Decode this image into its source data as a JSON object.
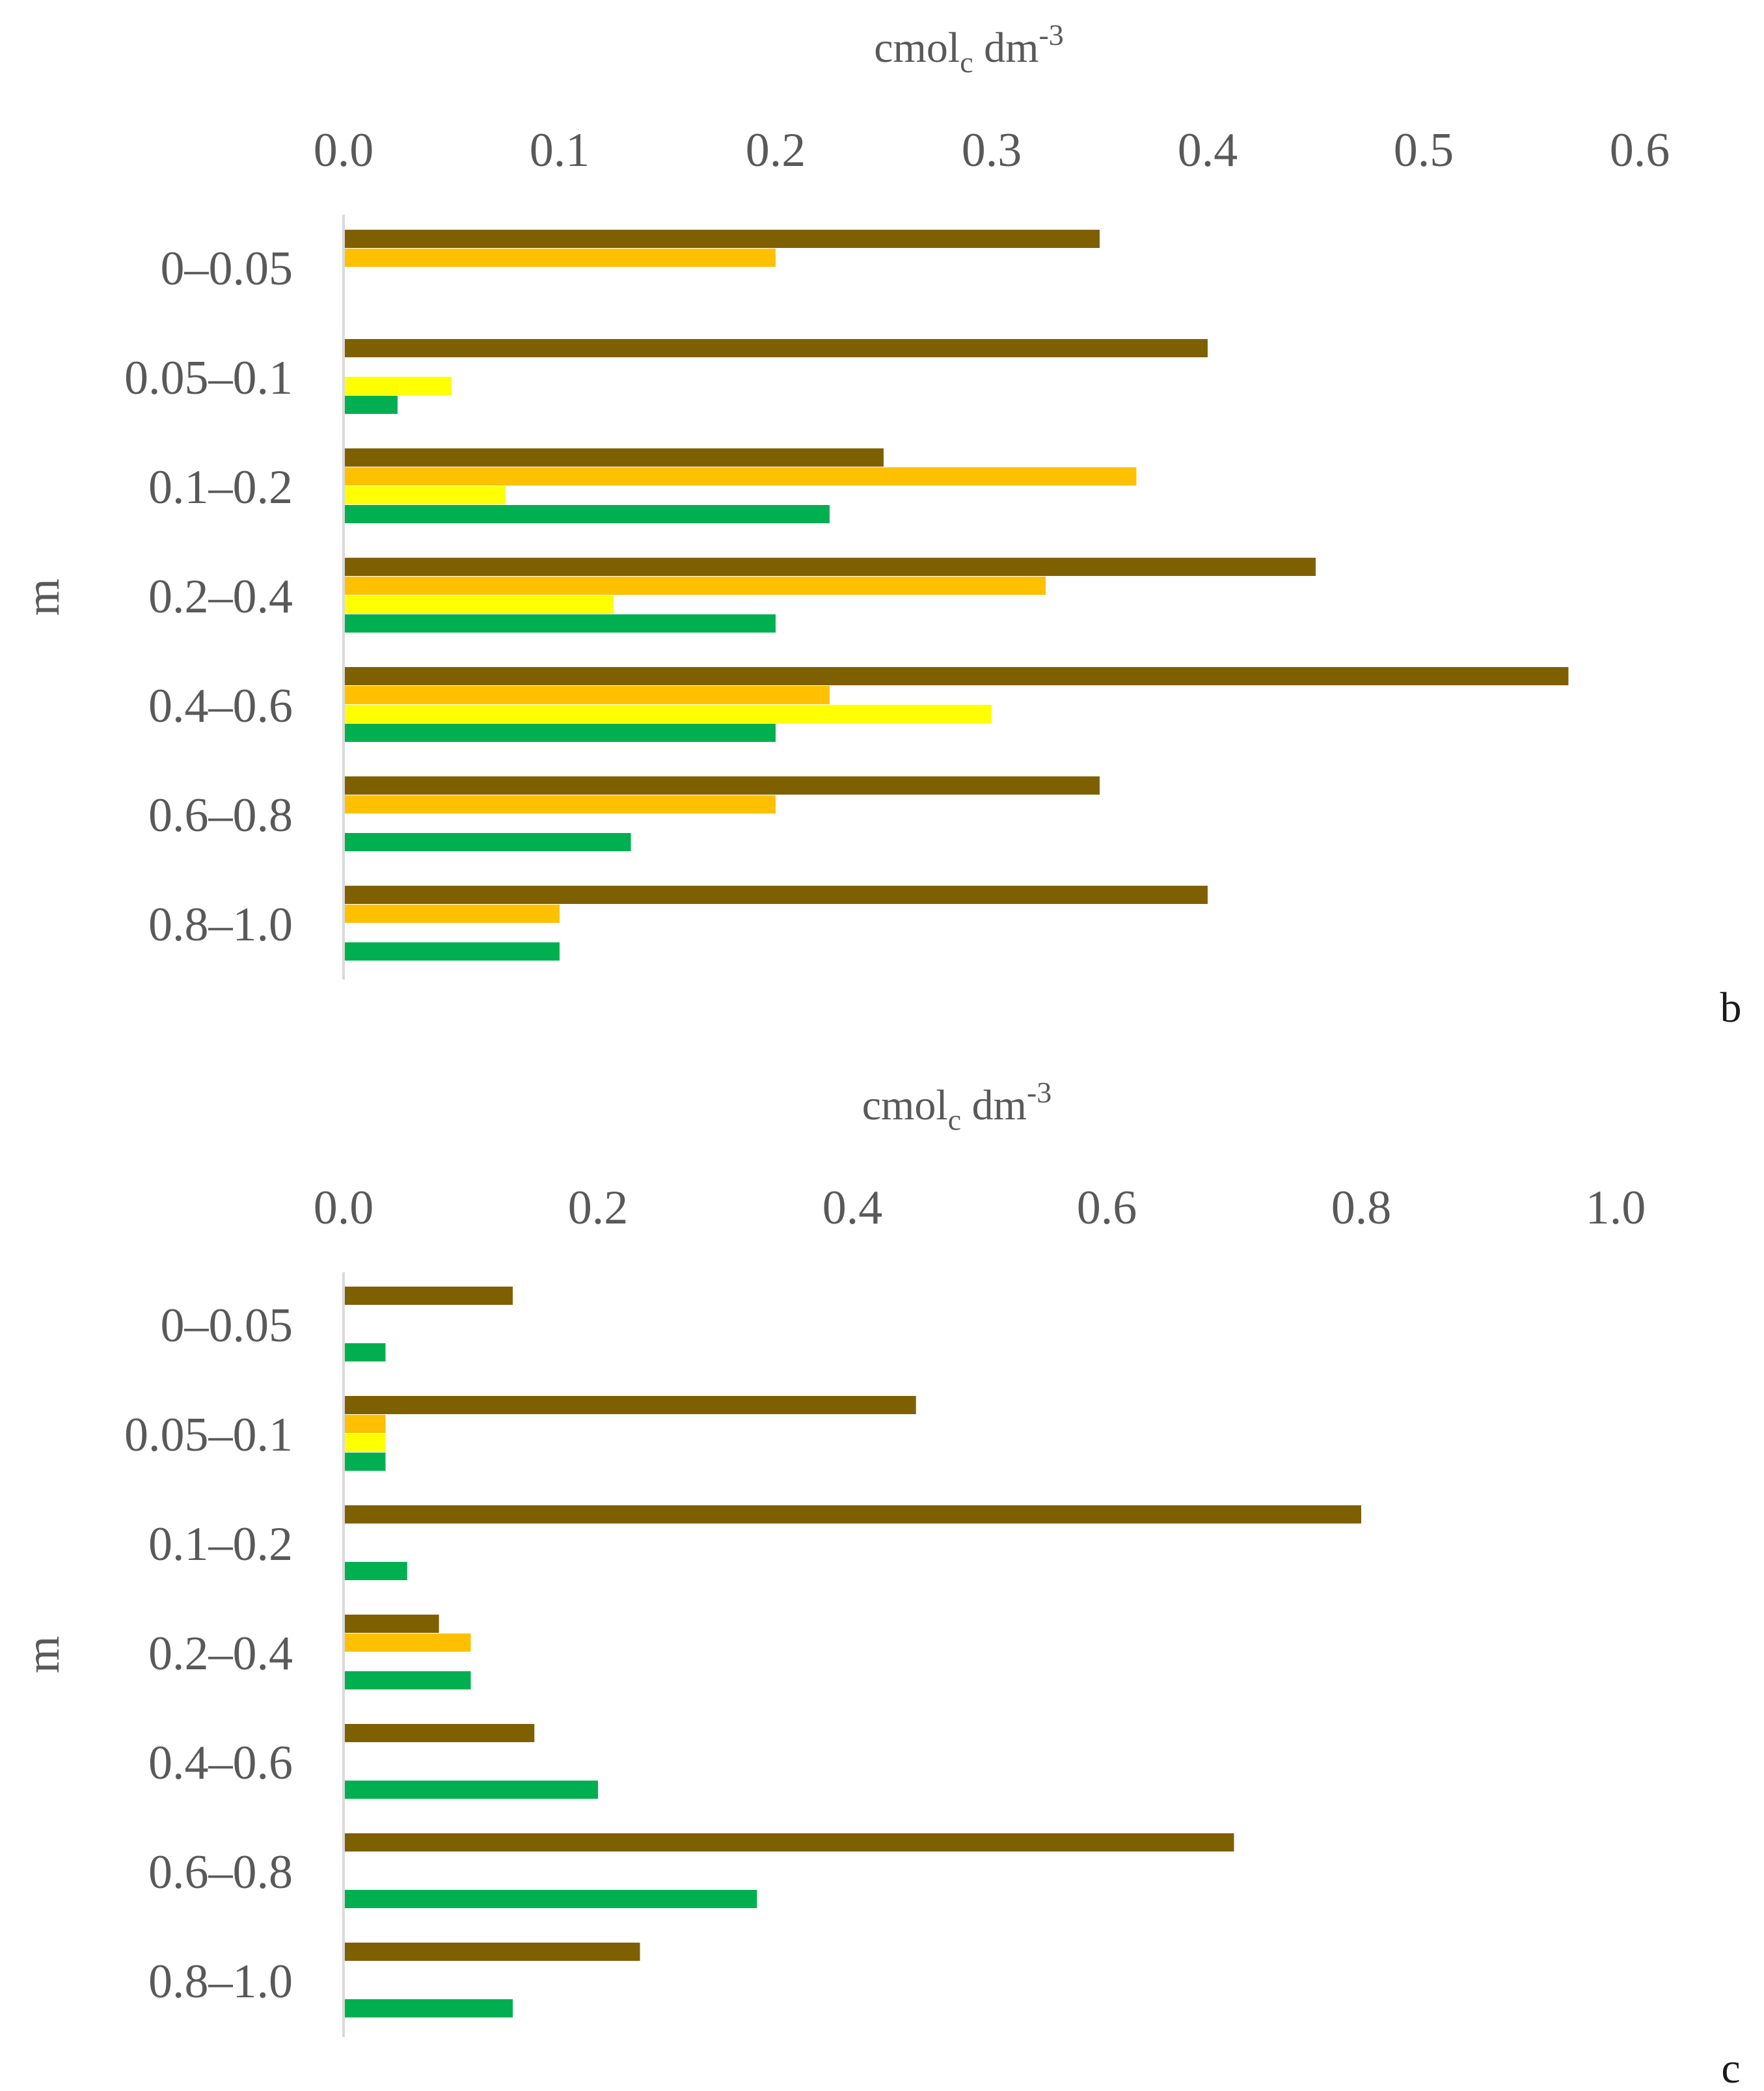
{
  "colors": {
    "series1": "#7f6000",
    "series2": "#ffc000",
    "series3": "#ffff00",
    "series4": "#00b050",
    "text": "#595959",
    "axis": "#d9d9d9"
  },
  "chart_data": [
    {
      "type": "bar",
      "orientation": "horizontal",
      "panel_label": "b",
      "xlabel_main": "cmol",
      "xlabel_sub": "c",
      "xlabel_rest": " dm",
      "xlabel_sup": "-3",
      "ylabel": "m",
      "xlim": [
        0,
        0.6
      ],
      "xticks": [
        "0.0",
        "0.1",
        "0.2",
        "0.3",
        "0.4",
        "0.5",
        "0.6"
      ],
      "categories": [
        "0–0.05",
        "0.05–0.1",
        "0.1–0.2",
        "0.2–0.4",
        "0.4–0.6",
        "0.6–0.8",
        "0.8–1.0"
      ],
      "series": [
        {
          "color_key": "series1",
          "values": [
            0.35,
            0.4,
            0.25,
            0.45,
            0.567,
            0.35,
            0.4
          ]
        },
        {
          "color_key": "series2",
          "values": [
            0.2,
            0.0,
            0.367,
            0.325,
            0.225,
            0.2,
            0.1
          ]
        },
        {
          "color_key": "series3",
          "values": [
            0.0,
            0.05,
            0.075,
            0.125,
            0.3,
            0.0,
            0.0
          ]
        },
        {
          "color_key": "series4",
          "values": [
            0.0,
            0.025,
            0.225,
            0.2,
            0.2,
            0.133,
            0.1
          ]
        }
      ]
    },
    {
      "type": "bar",
      "orientation": "horizontal",
      "panel_label": "c",
      "xlabel_main": "cmol",
      "xlabel_sub": "c",
      "xlabel_rest": " dm",
      "xlabel_sup": "-3",
      "ylabel": "m",
      "xlim": [
        0,
        1.0
      ],
      "xticks": [
        "0.0",
        "0.2",
        "0.4",
        "0.6",
        "0.8",
        "1.0"
      ],
      "categories": [
        "0–0.05",
        "0.05–0.1",
        "0.1–0.2",
        "0.2–0.4",
        "0.4–0.6",
        "0.6–0.8",
        "0.8–1.0"
      ],
      "series": [
        {
          "color_key": "series1",
          "values": [
            0.133,
            0.45,
            0.8,
            0.075,
            0.15,
            0.7,
            0.233
          ]
        },
        {
          "color_key": "series2",
          "values": [
            0.0,
            0.033,
            0.0,
            0.1,
            0.0,
            0.0,
            0.0
          ]
        },
        {
          "color_key": "series3",
          "values": [
            0.0,
            0.033,
            0.0,
            0.0,
            0.0,
            0.0,
            0.0
          ]
        },
        {
          "color_key": "series4",
          "values": [
            0.033,
            0.033,
            0.05,
            0.1,
            0.2,
            0.325,
            0.133
          ]
        }
      ]
    }
  ]
}
